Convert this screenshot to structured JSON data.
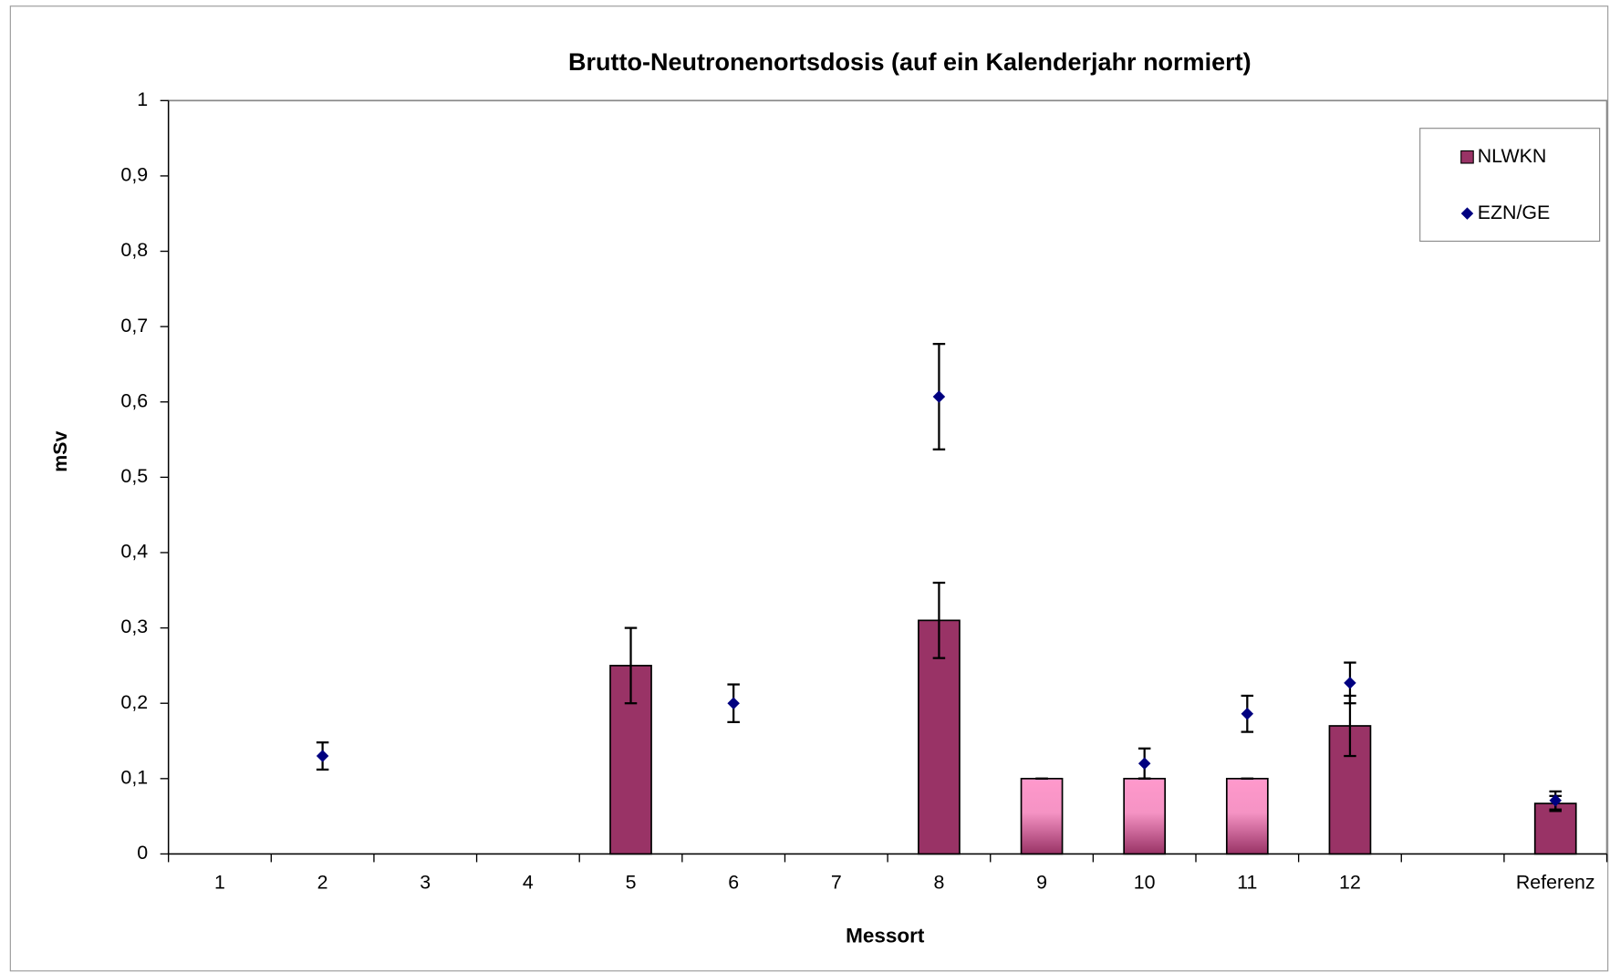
{
  "chart_data": {
    "type": "bar",
    "title": "Brutto-Neutronenortsdosis (auf ein Kalenderjahr normiert)",
    "y_label": "mSv",
    "x_label": "Messort",
    "categories": [
      "1",
      "2",
      "3",
      "4",
      "5",
      "6",
      "7",
      "8",
      "9",
      "10",
      "11",
      "12",
      null,
      "Referenz"
    ],
    "series": [
      {
        "name": "NLWKN",
        "type": "bar",
        "color": "#993366",
        "colors": [
          null,
          null,
          null,
          null,
          "#993366",
          null,
          null,
          "#993366",
          "#ff99cc",
          "#ff99cc",
          "#ff99cc",
          "#993366",
          null,
          "#993366"
        ],
        "values": [
          null,
          null,
          null,
          null,
          0.25,
          null,
          null,
          0.31,
          0.1,
          0.1,
          0.1,
          0.17,
          null,
          0.067
        ],
        "errors": [
          null,
          null,
          null,
          null,
          0.05,
          null,
          null,
          0.05,
          0,
          0,
          0,
          0.04,
          null,
          0.01
        ]
      },
      {
        "name": "EZN/GE",
        "type": "scatter",
        "color": "#000080",
        "values": [
          null,
          0.13,
          null,
          null,
          null,
          0.2,
          null,
          0.607,
          null,
          0.12,
          0.186,
          0.227,
          null,
          0.071
        ],
        "errors": [
          null,
          0.018,
          null,
          null,
          null,
          0.025,
          null,
          0.07,
          null,
          0.02,
          0.024,
          0.027,
          null,
          0.012
        ]
      }
    ],
    "ylim": [
      0,
      1
    ],
    "yticks": [
      0,
      {
        "value": 0.1,
        "label": "0,1"
      },
      {
        "value": 0.2,
        "label": "0,2"
      },
      {
        "value": 0.3,
        "label": "0,3"
      },
      {
        "value": 0.4,
        "label": "0,4"
      },
      {
        "value": 0.5,
        "label": "0,5"
      },
      {
        "value": 0.6,
        "label": "0,6"
      },
      {
        "value": 0.7,
        "label": "0,7"
      },
      {
        "value": 0.8,
        "label": "0,8"
      },
      {
        "value": 0.9,
        "label": "0,9"
      },
      1
    ],
    "grid": false,
    "legend": "top-right"
  }
}
